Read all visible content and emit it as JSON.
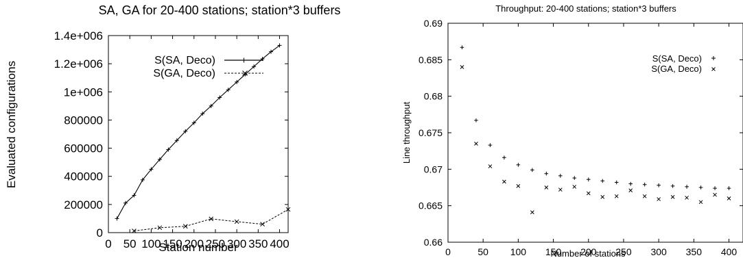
{
  "chart_data": [
    {
      "type": "line",
      "title": "SA, GA for 20-400 stations; station*3 buffers",
      "xlabel": "Station number",
      "ylabel": "Evaluated configurations",
      "xlim": [
        0,
        420
      ],
      "ylim": [
        0,
        1400000
      ],
      "xticks": [
        0,
        50,
        100,
        150,
        200,
        250,
        300,
        350,
        400
      ],
      "yticks": [
        0,
        200000,
        400000,
        600000,
        800000,
        1000000,
        1200000,
        1400000
      ],
      "ytick_labels": [
        "0",
        "200000",
        "400000",
        "600000",
        "800000",
        "1e+006",
        "1.2e+006",
        "1.4e+006"
      ],
      "grid": false,
      "legend_position": "top-right",
      "series": [
        {
          "name": "S(SA, Deco)",
          "marker": "+",
          "line": "solid",
          "x": [
            20,
            40,
            60,
            80,
            100,
            120,
            140,
            160,
            180,
            200,
            220,
            240,
            260,
            280,
            300,
            320,
            340,
            360,
            380,
            400
          ],
          "y": [
            100000,
            210000,
            265000,
            375000,
            450000,
            520000,
            590000,
            655000,
            720000,
            780000,
            845000,
            900000,
            960000,
            1015000,
            1070000,
            1125000,
            1180000,
            1235000,
            1285000,
            1330000
          ]
        },
        {
          "name": "S(GA, Deco)",
          "marker": "x",
          "line": "dashed",
          "x": [
            60,
            120,
            180,
            240,
            300,
            360,
            420
          ],
          "y": [
            12000,
            35000,
            45000,
            98000,
            78000,
            60000,
            165000
          ]
        }
      ]
    },
    {
      "type": "scatter",
      "title": "Throughput: 20-400 stations; station*3 buffers",
      "xlabel": "Number of stations",
      "ylabel": "Line throughput",
      "xlim": [
        0,
        420
      ],
      "ylim": [
        0.66,
        0.69
      ],
      "xticks": [
        0,
        50,
        100,
        150,
        200,
        250,
        300,
        350,
        400
      ],
      "yticks": [
        0.66,
        0.665,
        0.67,
        0.675,
        0.68,
        0.685,
        0.69
      ],
      "grid": false,
      "legend_position": "top-right",
      "series": [
        {
          "name": "S(SA, Deco)",
          "marker": "+",
          "x": [
            20,
            40,
            60,
            80,
            100,
            120,
            140,
            160,
            180,
            200,
            220,
            240,
            260,
            280,
            300,
            320,
            340,
            360,
            380,
            400
          ],
          "y": [
            0.6867,
            0.6767,
            0.6733,
            0.6716,
            0.6706,
            0.6699,
            0.6694,
            0.6691,
            0.6688,
            0.6686,
            0.6684,
            0.6682,
            0.668,
            0.6679,
            0.6678,
            0.6677,
            0.6676,
            0.6675,
            0.6674,
            0.6674
          ]
        },
        {
          "name": "S(GA, Deco)",
          "marker": "x",
          "x": [
            20,
            40,
            60,
            80,
            100,
            120,
            140,
            160,
            180,
            200,
            220,
            240,
            260,
            280,
            300,
            320,
            340,
            360,
            380,
            400
          ],
          "y": [
            0.684,
            0.6735,
            0.6704,
            0.6683,
            0.6677,
            0.6641,
            0.6675,
            0.6672,
            0.6676,
            0.6667,
            0.6662,
            0.6663,
            0.6671,
            0.6663,
            0.6659,
            0.6662,
            0.6661,
            0.6655,
            0.6665,
            0.666
          ]
        }
      ]
    }
  ]
}
